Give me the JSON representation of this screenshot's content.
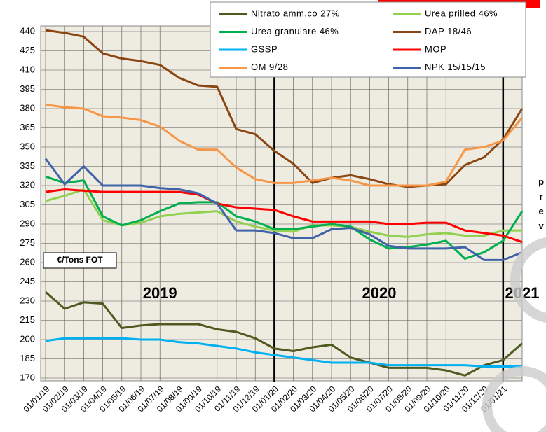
{
  "chart_data": {
    "type": "line",
    "categories": [
      "01/01/19",
      "01/02/19",
      "01/03/19",
      "01/04/19",
      "01/05/19",
      "01/06/19",
      "01/07/19",
      "01/08/19",
      "01/09/19",
      "01/10/19",
      "01/11/19",
      "01/12/19",
      "01/01/20",
      "01/02/20",
      "01/03/20",
      "01/04/20",
      "01/05/20",
      "01/06/20",
      "01/07/20",
      "01/08/20",
      "01/09/20",
      "01/10/20",
      "01/11/20",
      "01/12/20",
      "01/01/21",
      null
    ],
    "series": [
      {
        "name": "Nitrato amm.co 27%",
        "color": "#4f5a1e",
        "values": [
          237,
          224,
          229,
          228,
          209,
          211,
          212,
          212,
          212,
          208,
          206,
          201,
          193,
          191,
          194,
          196,
          186,
          182,
          178,
          178,
          178,
          176,
          172,
          180,
          184,
          197
        ]
      },
      {
        "name": "Urea prilled 46%",
        "color": "#92d050",
        "values": [
          308,
          312,
          317,
          293,
          289,
          291,
          296,
          298,
          299,
          300,
          292,
          288,
          285,
          284,
          289,
          289,
          288,
          284,
          281,
          280,
          282,
          283,
          281,
          281,
          285,
          285
        ]
      },
      {
        "name": "Urea granulare 46%",
        "color": "#00b050",
        "values": [
          327,
          322,
          324,
          296,
          289,
          293,
          300,
          306,
          307,
          307,
          296,
          292,
          286,
          286,
          288,
          290,
          288,
          278,
          271,
          272,
          274,
          277,
          263,
          268,
          277,
          300
        ]
      },
      {
        "name": "DAP 18/46",
        "color": "#8b4513",
        "values": [
          441,
          439,
          436,
          423,
          419,
          417,
          414,
          404,
          398,
          397,
          364,
          360,
          347,
          337,
          322,
          326,
          328,
          325,
          321,
          319,
          320,
          321,
          336,
          342,
          356,
          380
        ]
      },
      {
        "name": "GSSP",
        "color": "#00b0f0",
        "values": [
          199,
          201,
          201,
          201,
          201,
          200,
          200,
          198,
          197,
          195,
          193,
          190,
          188,
          186,
          184,
          182,
          182,
          182,
          180,
          180,
          180,
          180,
          180,
          179,
          179,
          179
        ]
      },
      {
        "name": "MOP",
        "color": "#ff0000",
        "values": [
          315,
          317,
          316,
          315,
          315,
          315,
          315,
          315,
          313,
          306,
          303,
          302,
          301,
          296,
          292,
          292,
          292,
          292,
          290,
          290,
          291,
          291,
          285,
          283,
          281,
          276
        ]
      },
      {
        "name": "OM 9/28",
        "color": "#f79646",
        "values": [
          383,
          381,
          380,
          374,
          373,
          371,
          366,
          355,
          348,
          348,
          334,
          325,
          322,
          322,
          324,
          326,
          324,
          320,
          320,
          320,
          320,
          323,
          348,
          350,
          355,
          373
        ]
      },
      {
        "name": "NPK 15/15/15",
        "color": "#4063a8",
        "values": [
          341,
          321,
          335,
          320,
          320,
          320,
          318,
          317,
          314,
          306,
          285,
          285,
          283,
          279,
          279,
          286,
          287,
          282,
          273,
          271,
          271,
          271,
          272,
          262,
          262,
          268
        ]
      }
    ],
    "ylim": [
      170,
      440
    ],
    "yticks": [
      170,
      185,
      200,
      215,
      230,
      245,
      260,
      275,
      290,
      305,
      320,
      335,
      350,
      365,
      380,
      395,
      410,
      425,
      440
    ],
    "grid": true,
    "plot_background": "#eeece1",
    "unit_label": "€/Tons FOT",
    "year_labels": [
      {
        "index": 6,
        "label": "2019"
      },
      {
        "index": 17.5,
        "label": "2020"
      },
      {
        "index": 25,
        "label": "2021"
      }
    ],
    "year_dividers": [
      12,
      24
    ],
    "side_annotation": "prev"
  }
}
